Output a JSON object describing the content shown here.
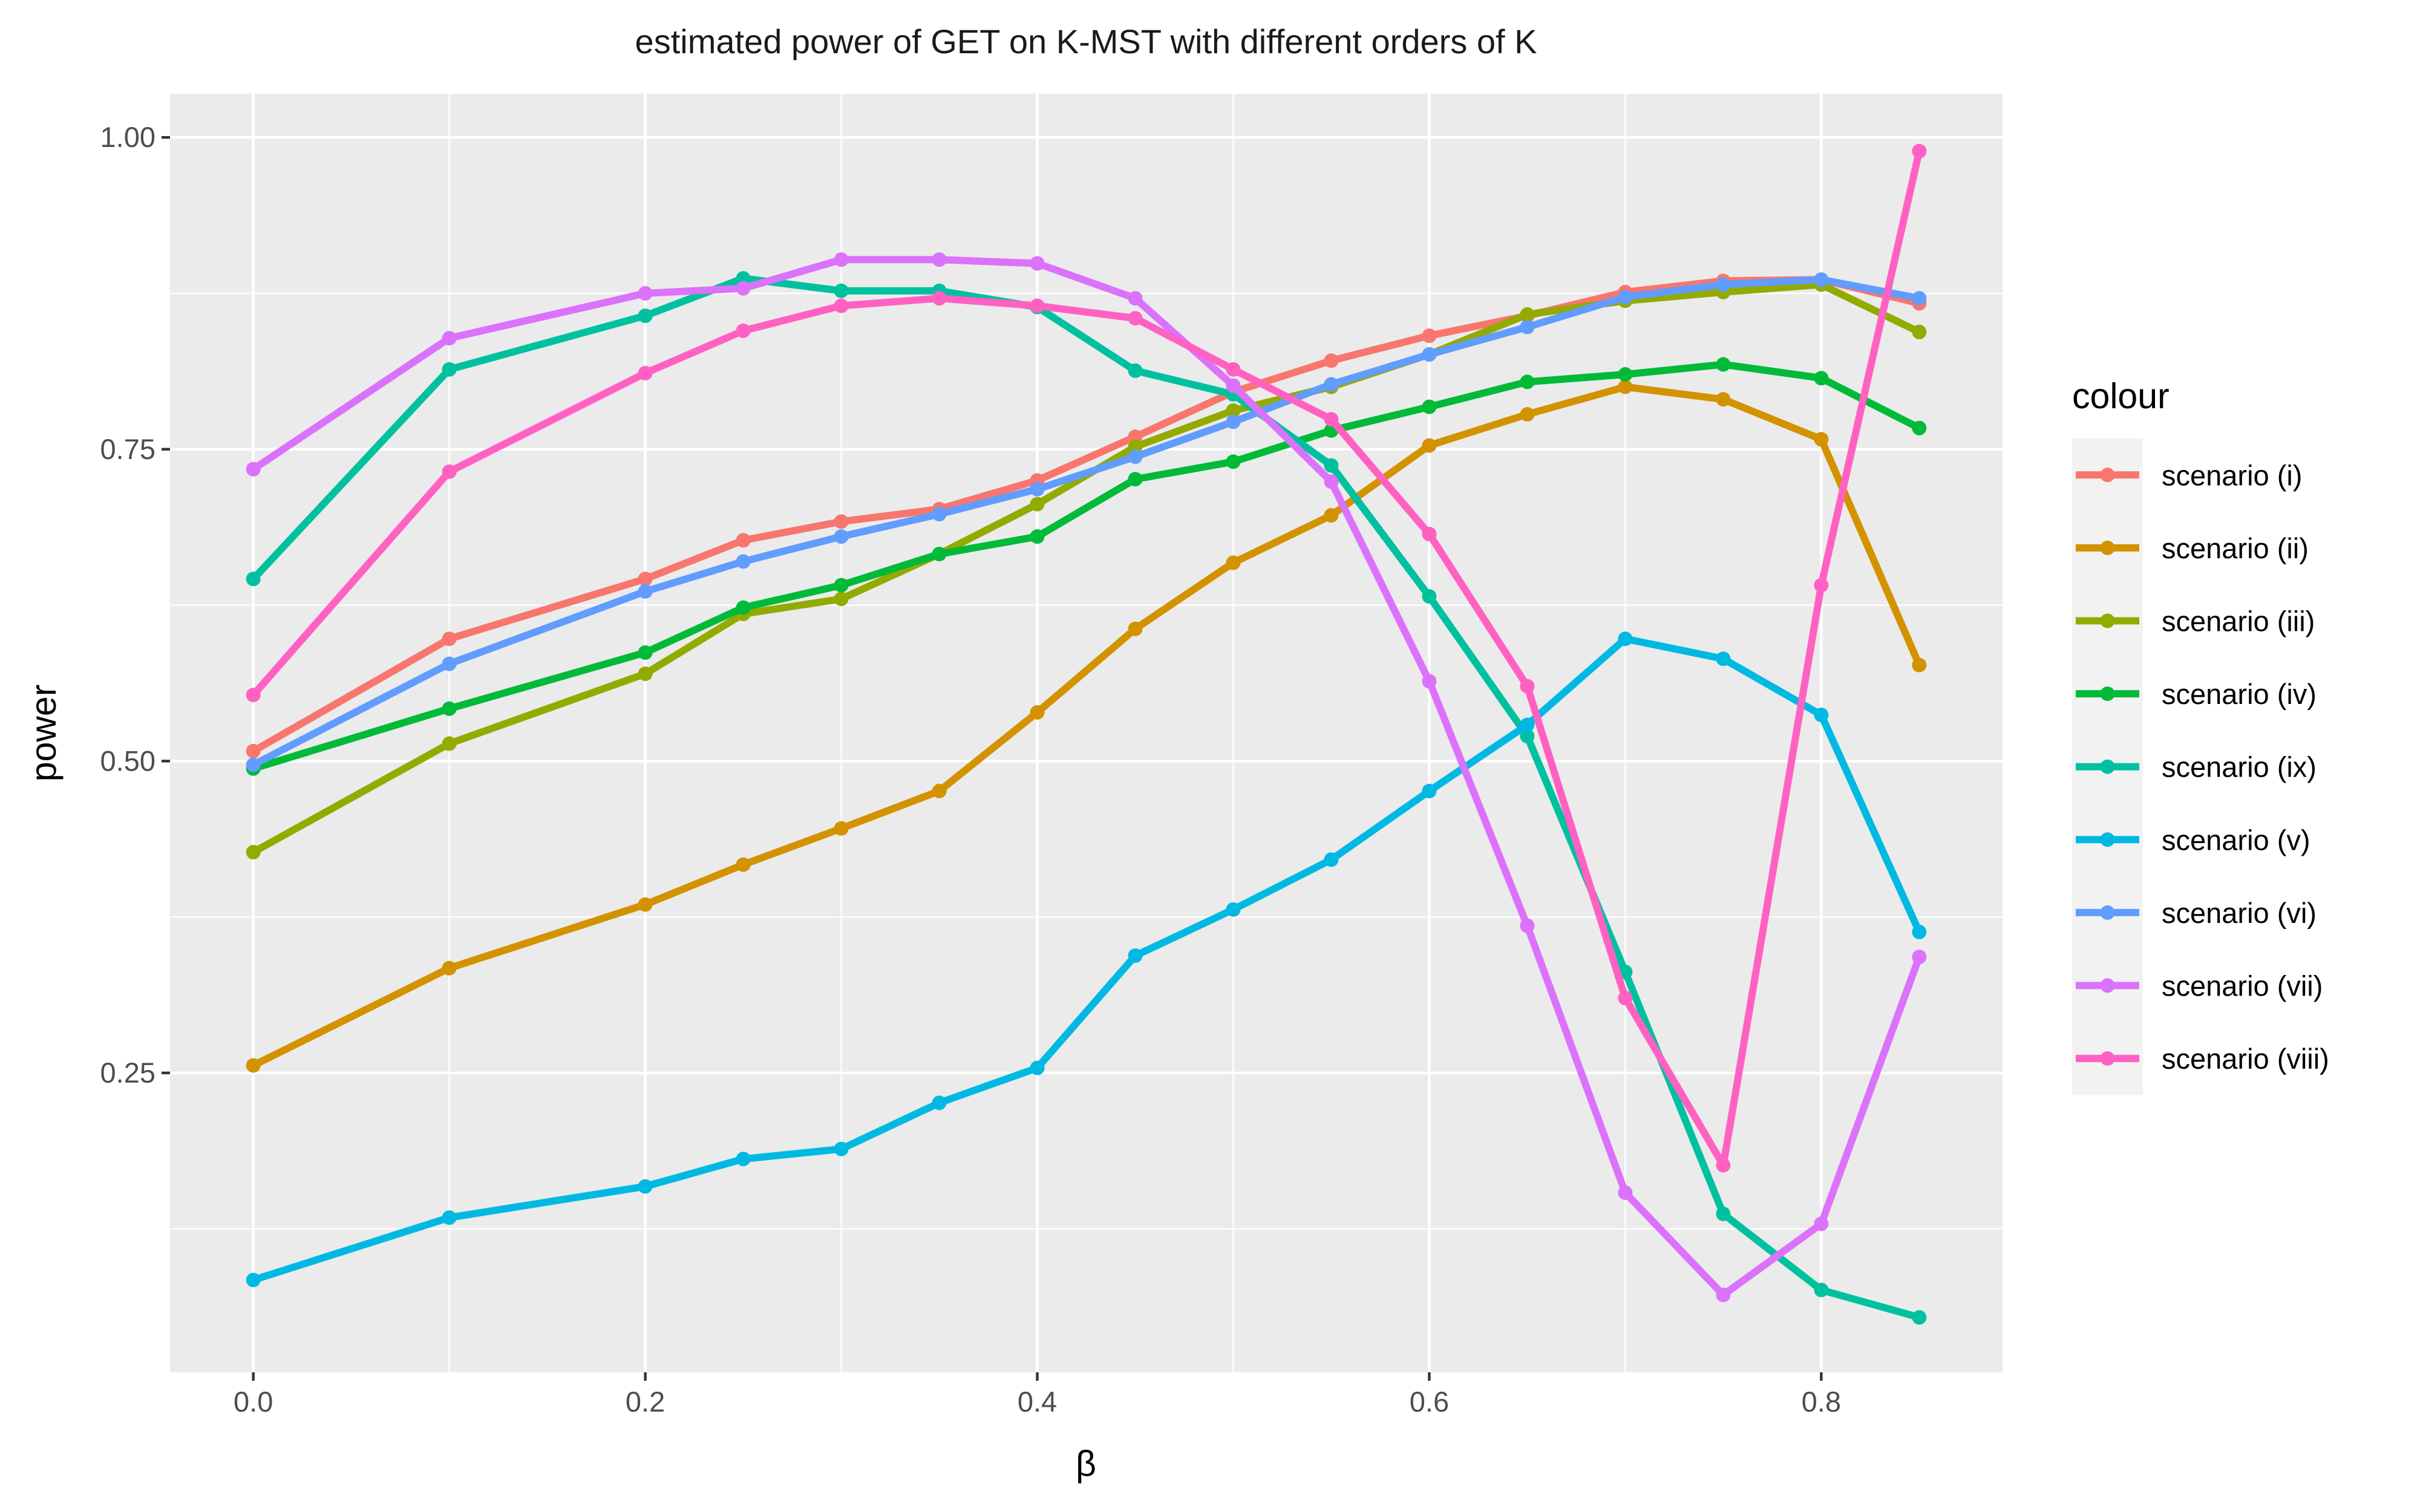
{
  "chart_data": {
    "type": "line",
    "title": "estimated power of GET on K-MST with different orders of K",
    "xlabel": "β",
    "ylabel": "power",
    "xlim": [
      -0.0425,
      0.8925
    ],
    "ylim": [
      0.01,
      1.035
    ],
    "x_ticks": [
      0.0,
      0.2,
      0.4,
      0.6,
      0.8
    ],
    "x_tick_labels": [
      "0.0",
      "0.2",
      "0.4",
      "0.6",
      "0.8"
    ],
    "y_ticks": [
      0.25,
      0.5,
      0.75,
      1.0
    ],
    "y_tick_labels": [
      "0.25",
      "0.50",
      "0.75",
      "1.00"
    ],
    "grid": true,
    "legend_title": "colour",
    "legend_position": "right",
    "x": [
      0.0,
      0.1,
      0.2,
      0.25,
      0.3,
      0.35,
      0.4,
      0.45,
      0.5,
      0.55,
      0.6,
      0.65,
      0.7,
      0.75,
      0.8,
      0.85
    ],
    "series": [
      {
        "name": "scenario (i)",
        "color": "#F8766D",
        "values": [
          0.508,
          0.598,
          0.646,
          0.677,
          0.692,
          0.702,
          0.725,
          0.76,
          0.796,
          0.821,
          0.841,
          0.857,
          0.876,
          0.885,
          0.886,
          0.867
        ]
      },
      {
        "name": "scenario (ii)",
        "color": "#D39200",
        "values": [
          0.256,
          0.334,
          0.385,
          0.417,
          0.446,
          0.476,
          0.539,
          0.606,
          0.659,
          0.697,
          0.753,
          0.778,
          0.8,
          0.79,
          0.758,
          0.577
        ]
      },
      {
        "name": "scenario (iii)",
        "color": "#93AA00",
        "values": [
          0.427,
          0.514,
          0.57,
          0.618,
          0.63,
          0.666,
          0.706,
          0.752,
          0.781,
          0.8,
          0.826,
          0.858,
          0.869,
          0.876,
          0.882,
          0.844
        ]
      },
      {
        "name": "scenario (iv)",
        "color": "#00BA38",
        "values": [
          0.494,
          0.542,
          0.587,
          0.623,
          0.641,
          0.666,
          0.68,
          0.726,
          0.74,
          0.765,
          0.784,
          0.804,
          0.81,
          0.818,
          0.807,
          0.767
        ]
      },
      {
        "name": "scenario (ix)",
        "color": "#00C19F",
        "values": [
          0.646,
          0.814,
          0.857,
          0.887,
          0.877,
          0.877,
          0.864,
          0.813,
          0.794,
          0.737,
          0.632,
          0.52,
          0.331,
          0.137,
          0.076,
          0.054
        ]
      },
      {
        "name": "scenario (v)",
        "color": "#00B9E3",
        "values": [
          0.084,
          0.134,
          0.159,
          0.181,
          0.189,
          0.226,
          0.254,
          0.344,
          0.381,
          0.421,
          0.476,
          0.529,
          0.598,
          0.582,
          0.537,
          0.363
        ]
      },
      {
        "name": "scenario (vi)",
        "color": "#619CFF",
        "values": [
          0.497,
          0.578,
          0.636,
          0.66,
          0.68,
          0.698,
          0.718,
          0.744,
          0.772,
          0.802,
          0.826,
          0.848,
          0.872,
          0.882,
          0.886,
          0.871
        ]
      },
      {
        "name": "scenario (vii)",
        "color": "#DB72FB",
        "values": [
          0.734,
          0.839,
          0.875,
          0.879,
          0.902,
          0.902,
          0.899,
          0.871,
          0.801,
          0.724,
          0.564,
          0.368,
          0.154,
          0.072,
          0.129,
          0.343
        ]
      },
      {
        "name": "scenario (viii)",
        "color": "#FF61C3",
        "values": [
          0.553,
          0.732,
          0.811,
          0.845,
          0.865,
          0.871,
          0.865,
          0.855,
          0.814,
          0.774,
          0.682,
          0.56,
          0.31,
          0.176,
          0.641,
          0.989
        ]
      }
    ]
  }
}
